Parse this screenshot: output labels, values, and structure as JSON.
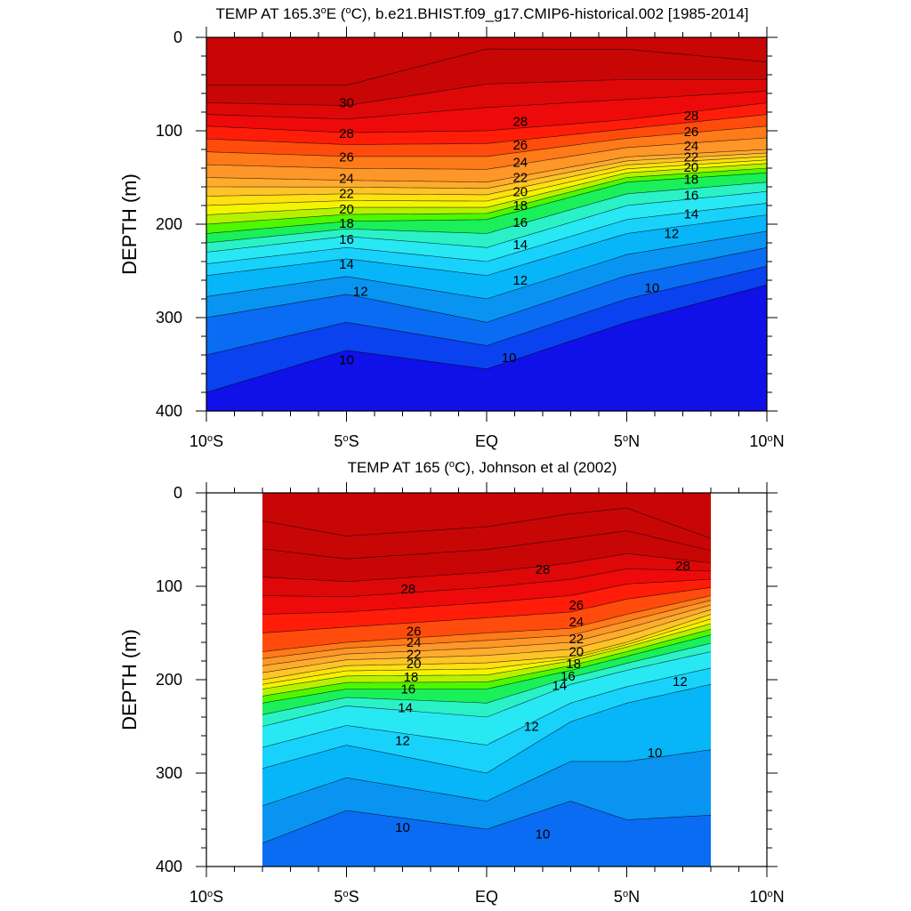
{
  "chart_data": [
    {
      "type": "contour",
      "title": "TEMP AT 165.3°E (°C), b.e21.BHIST.f09_g17.CMIP6-historical.002 [1985-2014]",
      "ylabel": "DEPTH (m)",
      "xlabel": "",
      "x_ticks": [
        "10°S",
        "5°S",
        "EQ",
        "5°N",
        "10°N"
      ],
      "y_ticks": [
        "0",
        "100",
        "200",
        "300",
        "400"
      ],
      "xlim": [
        -10,
        10
      ],
      "ylim": [
        0,
        400
      ],
      "y_inverted": true,
      "data_xlim": [
        -10,
        10
      ],
      "levels": [
        10,
        11,
        12,
        13,
        14,
        15,
        16,
        17,
        18,
        19,
        20,
        21,
        22,
        23,
        24,
        25,
        26,
        27,
        28,
        29,
        30,
        31
      ],
      "colors": [
        "#1010e8",
        "#0a42f0",
        "#0a6cf2",
        "#0a94f2",
        "#06b6f8",
        "#19d2fb",
        "#28e8f4",
        "#2af2c6",
        "#19f05a",
        "#4ef800",
        "#b6f200",
        "#f4f400",
        "#ffe010",
        "#ffc428",
        "#ffac2e",
        "#ff9628",
        "#ff7a18",
        "#ff4c0c",
        "#ff1c08",
        "#ee0a0a",
        "#de0808",
        "#c80606"
      ],
      "isotherm_depth_points": {
        "lat": [
          -10,
          -5,
          0,
          5,
          10
        ],
        "t10": [
          380,
          335,
          355,
          305,
          265
        ],
        "t12": [
          300,
          275,
          305,
          255,
          225
        ],
        "t14": [
          255,
          237,
          255,
          210,
          190
        ],
        "t16": [
          230,
          213,
          225,
          180,
          165
        ],
        "t18": [
          210,
          197,
          195,
          155,
          145
        ],
        "t20": [
          190,
          182,
          182,
          145,
          135
        ],
        "t24": [
          150,
          153,
          155,
          128,
          120
        ],
        "t28": [
          95,
          102,
          100,
          88,
          70
        ],
        "t30": [
          70,
          73,
          50,
          45,
          45
        ]
      },
      "contour_labels": [
        {
          "text": "30",
          "lat": -5,
          "depth": 70
        },
        {
          "text": "28",
          "lat": -5,
          "depth": 103
        },
        {
          "text": "26",
          "lat": -5,
          "depth": 128
        },
        {
          "text": "24",
          "lat": -5,
          "depth": 151
        },
        {
          "text": "22",
          "lat": -5,
          "depth": 167
        },
        {
          "text": "20",
          "lat": -5,
          "depth": 184
        },
        {
          "text": "18",
          "lat": -5,
          "depth": 199
        },
        {
          "text": "16",
          "lat": -5,
          "depth": 216
        },
        {
          "text": "14",
          "lat": -5,
          "depth": 243
        },
        {
          "text": "12",
          "lat": -4.5,
          "depth": 272
        },
        {
          "text": "10",
          "lat": -5,
          "depth": 345
        },
        {
          "text": "28",
          "lat": 1.2,
          "depth": 90
        },
        {
          "text": "26",
          "lat": 1.2,
          "depth": 115
        },
        {
          "text": "24",
          "lat": 1.2,
          "depth": 134
        },
        {
          "text": "22",
          "lat": 1.2,
          "depth": 150
        },
        {
          "text": "20",
          "lat": 1.2,
          "depth": 165
        },
        {
          "text": "18",
          "lat": 1.2,
          "depth": 180
        },
        {
          "text": "16",
          "lat": 1.2,
          "depth": 198
        },
        {
          "text": "14",
          "lat": 1.2,
          "depth": 222
        },
        {
          "text": "12",
          "lat": 1.2,
          "depth": 260
        },
        {
          "text": "10",
          "lat": 0.8,
          "depth": 343
        },
        {
          "text": "28",
          "lat": 7.3,
          "depth": 84
        },
        {
          "text": "26",
          "lat": 7.3,
          "depth": 101
        },
        {
          "text": "24",
          "lat": 7.3,
          "depth": 116
        },
        {
          "text": "22",
          "lat": 7.3,
          "depth": 128
        },
        {
          "text": "20",
          "lat": 7.3,
          "depth": 139
        },
        {
          "text": "18",
          "lat": 7.3,
          "depth": 152
        },
        {
          "text": "16",
          "lat": 7.3,
          "depth": 169
        },
        {
          "text": "14",
          "lat": 7.3,
          "depth": 189
        },
        {
          "text": "12",
          "lat": 6.6,
          "depth": 210
        },
        {
          "text": "10",
          "lat": 5.9,
          "depth": 268
        }
      ]
    },
    {
      "type": "contour",
      "title": "TEMP AT 165 (°C), Johnson et al (2002)",
      "ylabel": "DEPTH (m)",
      "xlabel": "",
      "x_ticks": [
        "10°S",
        "5°S",
        "EQ",
        "5°N",
        "10°N"
      ],
      "y_ticks": [
        "0",
        "100",
        "200",
        "300",
        "400"
      ],
      "xlim": [
        -10,
        10
      ],
      "ylim": [
        0,
        400
      ],
      "y_inverted": true,
      "data_xlim": [
        -8,
        8
      ],
      "levels": [
        9,
        10,
        11,
        12,
        13,
        14,
        15,
        16,
        17,
        18,
        19,
        20,
        21,
        22,
        23,
        24,
        25,
        26,
        27,
        28,
        29,
        30
      ],
      "colors": [
        "#0a42f0",
        "#0a6cf2",
        "#0a94f2",
        "#06b6f8",
        "#19d2fb",
        "#28e8f4",
        "#2af2c6",
        "#19f05a",
        "#4ef800",
        "#b6f200",
        "#f4f400",
        "#ffe010",
        "#ffc428",
        "#ffac2e",
        "#ff9628",
        "#ff7a18",
        "#ff4c0c",
        "#ff1c08",
        "#ee0a0a",
        "#de0808",
        "#c80606",
        "#c80606"
      ],
      "isotherm_depth_points": {
        "lat": [
          -8,
          -5,
          0,
          3,
          5,
          8
        ],
        "t10": [
          375,
          340,
          360,
          330,
          350,
          345
        ],
        "t12": [
          295,
          270,
          300,
          245,
          225,
          205
        ],
        "t14": [
          250,
          228,
          240,
          205,
          190,
          170
        ],
        "t16": [
          225,
          210,
          210,
          190,
          175,
          152
        ],
        "t18": [
          210,
          196,
          195,
          180,
          165,
          140
        ],
        "t20": [
          200,
          185,
          182,
          175,
          160,
          130
        ],
        "t24": [
          170,
          160,
          150,
          145,
          130,
          110
        ],
        "t28": [
          90,
          95,
          85,
          75,
          65,
          75
        ]
      },
      "contour_labels": [
        {
          "text": "28",
          "lat": -2.8,
          "depth": 103
        },
        {
          "text": "26",
          "lat": -2.6,
          "depth": 148
        },
        {
          "text": "24",
          "lat": -2.6,
          "depth": 160
        },
        {
          "text": "22",
          "lat": -2.6,
          "depth": 173
        },
        {
          "text": "20",
          "lat": -2.6,
          "depth": 183
        },
        {
          "text": "18",
          "lat": -2.7,
          "depth": 197
        },
        {
          "text": "16",
          "lat": -2.8,
          "depth": 210
        },
        {
          "text": "14",
          "lat": -2.9,
          "depth": 230
        },
        {
          "text": "12",
          "lat": -3.0,
          "depth": 265
        },
        {
          "text": "10",
          "lat": -3.0,
          "depth": 358
        },
        {
          "text": "28",
          "lat": 2.0,
          "depth": 82
        },
        {
          "text": "26",
          "lat": 3.2,
          "depth": 120
        },
        {
          "text": "24",
          "lat": 3.2,
          "depth": 138
        },
        {
          "text": "22",
          "lat": 3.2,
          "depth": 156
        },
        {
          "text": "20",
          "lat": 3.2,
          "depth": 170
        },
        {
          "text": "18",
          "lat": 3.1,
          "depth": 183
        },
        {
          "text": "16",
          "lat": 2.9,
          "depth": 196
        },
        {
          "text": "14",
          "lat": 2.6,
          "depth": 206
        },
        {
          "text": "12",
          "lat": 1.6,
          "depth": 250
        },
        {
          "text": "10",
          "lat": 2.0,
          "depth": 365
        },
        {
          "text": "28",
          "lat": 7.0,
          "depth": 78
        },
        {
          "text": "12",
          "lat": 6.9,
          "depth": 202
        },
        {
          "text": "10",
          "lat": 6.0,
          "depth": 278
        }
      ]
    }
  ]
}
